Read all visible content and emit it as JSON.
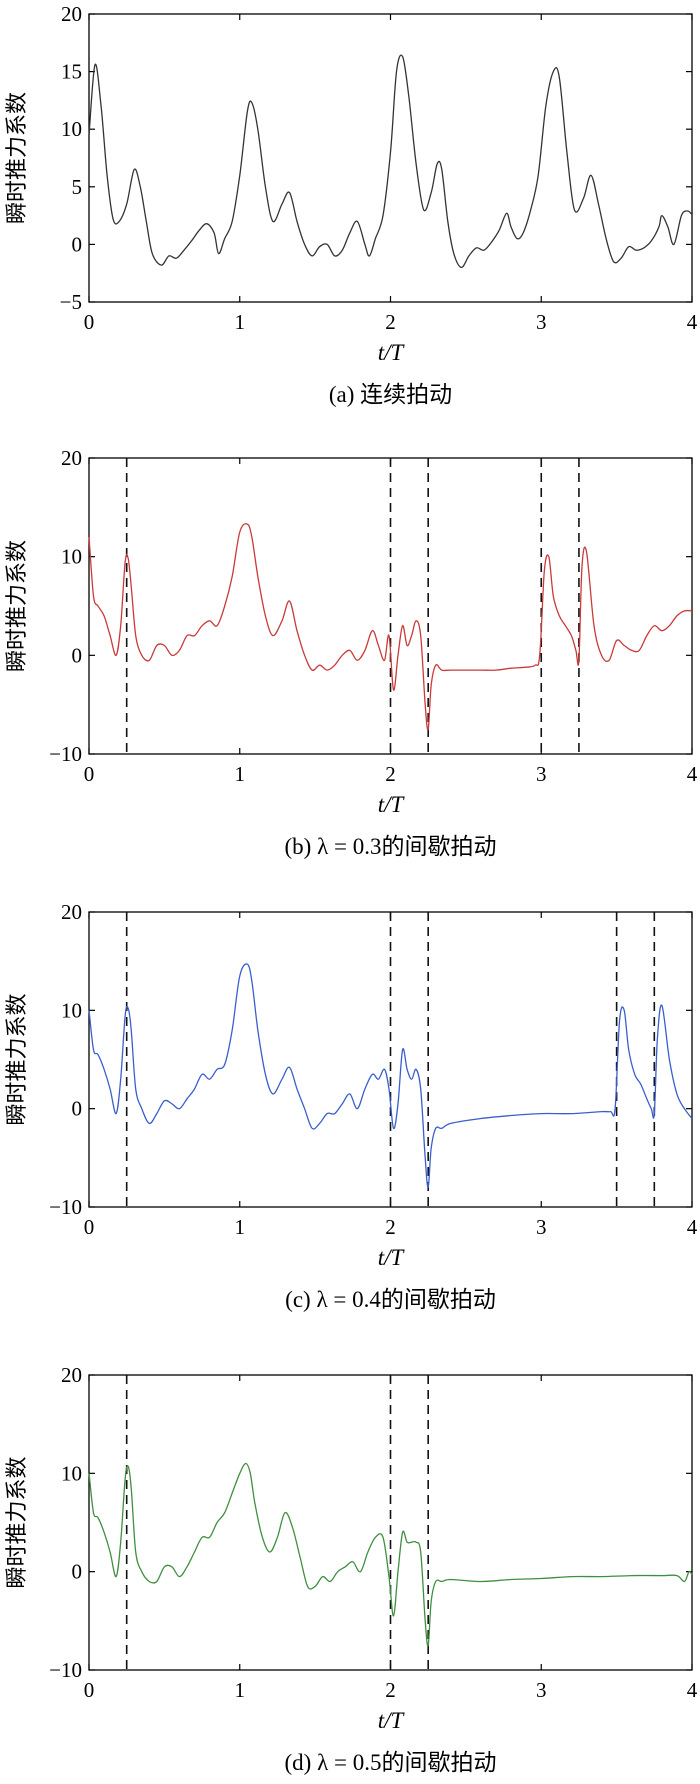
{
  "chart_data": [
    {
      "type": "line",
      "caption": "(a) 连续拍动",
      "xlabel": "t/T",
      "ylabel": "瞬时推力系数",
      "xlim": [
        0,
        4
      ],
      "ylim": [
        -5,
        20
      ],
      "xticks": [
        0,
        1,
        2,
        3,
        4
      ],
      "yticks": [
        -5,
        0,
        5,
        10,
        15,
        20
      ],
      "grid": false,
      "color": "#333333",
      "dashed_lines": [],
      "series": [
        {
          "x": [
            0.0,
            0.04,
            0.08,
            0.12,
            0.16,
            0.2,
            0.25,
            0.3,
            0.34,
            0.38,
            0.42,
            0.48,
            0.53,
            0.58,
            0.63,
            0.68,
            0.73,
            0.78,
            0.83,
            0.86,
            0.9,
            0.95,
            1.0,
            1.05,
            1.08,
            1.12,
            1.17,
            1.22,
            1.28,
            1.33,
            1.38,
            1.43,
            1.48,
            1.53,
            1.58,
            1.63,
            1.68,
            1.73,
            1.78,
            1.83,
            1.86,
            1.9,
            1.95,
            2.0,
            2.04,
            2.08,
            2.12,
            2.17,
            2.22,
            2.27,
            2.31,
            2.34,
            2.38,
            2.42,
            2.47,
            2.52,
            2.57,
            2.62,
            2.67,
            2.72,
            2.77,
            2.8,
            2.84,
            2.88,
            2.93,
            2.98,
            3.03,
            3.08,
            3.12,
            3.17,
            3.22,
            3.28,
            3.33,
            3.38,
            3.43,
            3.48,
            3.53,
            3.58,
            3.63,
            3.68,
            3.73,
            3.78,
            3.8,
            3.84,
            3.88,
            3.93,
            3.97,
            4.0
          ],
          "y": [
            9.5,
            15.6,
            12.0,
            6.0,
            2.2,
            2.0,
            3.5,
            6.5,
            5.0,
            2.0,
            -0.8,
            -1.8,
            -1.0,
            -1.2,
            -0.5,
            0.3,
            1.2,
            1.8,
            1.0,
            -0.8,
            0.5,
            2.0,
            6.0,
            11.5,
            12.3,
            10.0,
            5.0,
            2.0,
            3.5,
            4.5,
            2.0,
            0.0,
            -1.0,
            -0.2,
            0.0,
            -1.0,
            -0.5,
            1.0,
            2.0,
            0.0,
            -1.0,
            0.5,
            2.5,
            8.0,
            15.0,
            16.3,
            13.0,
            7.0,
            3.0,
            4.5,
            7.0,
            6.5,
            2.0,
            -0.8,
            -2.0,
            -1.0,
            -0.3,
            -0.5,
            0.2,
            1.2,
            2.7,
            1.5,
            0.5,
            1.0,
            3.0,
            6.0,
            12.0,
            15.0,
            14.5,
            8.0,
            3.0,
            4.0,
            6.0,
            3.5,
            0.5,
            -1.5,
            -1.2,
            -0.2,
            -0.5,
            -0.3,
            0.3,
            1.5,
            2.5,
            1.5,
            0.0,
            2.5,
            2.9,
            2.6
          ]
        }
      ]
    },
    {
      "type": "line",
      "caption": "(b) λ = 0.3的间歇拍动",
      "xlabel": "t/T",
      "ylabel": "瞬时推力系数",
      "xlim": [
        0,
        4
      ],
      "ylim": [
        -10,
        20
      ],
      "xticks": [
        0,
        1,
        2,
        3,
        4
      ],
      "yticks": [
        -10,
        0,
        10,
        20
      ],
      "grid": false,
      "color": "#c93a3a",
      "dashed_lines": [
        0.25,
        2.0,
        2.25,
        3.0,
        3.25
      ],
      "series": [
        {
          "x": [
            0.0,
            0.03,
            0.06,
            0.1,
            0.14,
            0.18,
            0.21,
            0.24,
            0.26,
            0.28,
            0.31,
            0.35,
            0.4,
            0.45,
            0.5,
            0.55,
            0.6,
            0.65,
            0.7,
            0.75,
            0.8,
            0.85,
            0.9,
            0.95,
            1.0,
            1.05,
            1.08,
            1.12,
            1.17,
            1.22,
            1.28,
            1.33,
            1.38,
            1.43,
            1.48,
            1.53,
            1.58,
            1.63,
            1.68,
            1.73,
            1.78,
            1.83,
            1.88,
            1.92,
            1.96,
            1.99,
            2.02,
            2.05,
            2.08,
            2.11,
            2.14,
            2.17,
            2.2,
            2.23,
            2.25,
            2.27,
            2.3,
            2.34,
            2.4,
            2.5,
            2.6,
            2.7,
            2.8,
            2.9,
            2.96,
            2.99,
            3.02,
            3.05,
            3.08,
            3.12,
            3.16,
            3.2,
            3.23,
            3.25,
            3.27,
            3.3,
            3.35,
            3.4,
            3.45,
            3.5,
            3.55,
            3.6,
            3.65,
            3.7,
            3.75,
            3.8,
            3.85,
            3.9,
            3.95,
            4.0
          ],
          "y": [
            12.0,
            6.0,
            5.0,
            4.0,
            2.0,
            0.0,
            3.0,
            9.5,
            9.8,
            7.0,
            2.0,
            0.0,
            -0.5,
            1.0,
            1.0,
            0.0,
            0.5,
            2.0,
            2.0,
            3.0,
            3.5,
            3.0,
            5.0,
            8.0,
            12.5,
            13.3,
            12.0,
            8.0,
            4.0,
            2.0,
            3.5,
            5.5,
            2.5,
            0.0,
            -1.5,
            -1.0,
            -1.5,
            -1.0,
            0.0,
            0.5,
            -0.5,
            0.5,
            2.5,
            1.0,
            -0.5,
            2.0,
            -3.5,
            0.0,
            3.0,
            1.0,
            2.0,
            3.5,
            2.0,
            -5.0,
            -7.5,
            -3.0,
            -1.0,
            -1.5,
            -1.5,
            -1.5,
            -1.5,
            -1.5,
            -1.3,
            -1.2,
            -1.0,
            0.0,
            8.5,
            10.0,
            6.0,
            4.0,
            3.0,
            2.0,
            0.5,
            -0.5,
            9.0,
            10.5,
            3.0,
            0.0,
            -0.5,
            1.5,
            1.0,
            0.5,
            0.5,
            2.0,
            3.0,
            2.5,
            3.0,
            4.0,
            4.5,
            4.5
          ]
        }
      ]
    },
    {
      "type": "line",
      "caption": "(c) λ = 0.4的间歇拍动",
      "xlabel": "t/T",
      "ylabel": "瞬时推力系数",
      "xlim": [
        0,
        4
      ],
      "ylim": [
        -10,
        20
      ],
      "xticks": [
        0,
        1,
        2,
        3,
        4
      ],
      "yticks": [
        -10,
        0,
        10,
        20
      ],
      "grid": false,
      "color": "#3a5fcd",
      "dashed_lines": [
        0.25,
        2.0,
        2.25,
        3.5,
        3.75
      ],
      "series": [
        {
          "x": [
            0.0,
            0.03,
            0.06,
            0.1,
            0.14,
            0.18,
            0.21,
            0.24,
            0.26,
            0.28,
            0.31,
            0.35,
            0.4,
            0.45,
            0.5,
            0.55,
            0.6,
            0.65,
            0.7,
            0.75,
            0.8,
            0.85,
            0.9,
            0.95,
            1.0,
            1.05,
            1.08,
            1.12,
            1.17,
            1.22,
            1.28,
            1.33,
            1.38,
            1.43,
            1.48,
            1.53,
            1.58,
            1.63,
            1.68,
            1.73,
            1.78,
            1.83,
            1.88,
            1.92,
            1.96,
            1.99,
            2.02,
            2.05,
            2.08,
            2.11,
            2.14,
            2.17,
            2.2,
            2.23,
            2.25,
            2.27,
            2.3,
            2.34,
            2.4,
            2.6,
            2.8,
            3.0,
            3.2,
            3.4,
            3.46,
            3.49,
            3.52,
            3.55,
            3.58,
            3.62,
            3.66,
            3.7,
            3.73,
            3.75,
            3.77,
            3.8,
            3.85,
            3.9,
            3.95,
            4.0
          ],
          "y": [
            10.0,
            6.0,
            5.5,
            4.0,
            2.0,
            -0.5,
            3.0,
            9.5,
            10.2,
            8.0,
            2.0,
            0.0,
            -1.5,
            -0.5,
            0.8,
            0.5,
            0.0,
            1.0,
            2.0,
            3.5,
            3.0,
            4.0,
            4.5,
            8.0,
            13.5,
            14.7,
            13.0,
            8.0,
            3.5,
            1.5,
            3.0,
            4.2,
            2.0,
            0.0,
            -2.0,
            -1.5,
            -0.5,
            -0.5,
            0.5,
            1.5,
            0.0,
            2.0,
            3.5,
            3.0,
            4.0,
            2.0,
            -2.0,
            0.5,
            6.0,
            4.0,
            3.0,
            4.0,
            2.0,
            -5.0,
            -8.0,
            -4.0,
            -2.0,
            -2.0,
            -1.5,
            -1.0,
            -0.7,
            -0.5,
            -0.5,
            -0.3,
            -0.3,
            0.0,
            9.0,
            10.0,
            6.0,
            3.5,
            2.5,
            1.0,
            0.0,
            -0.5,
            7.0,
            10.5,
            5.0,
            1.5,
            0.0,
            -1.0
          ]
        }
      ]
    },
    {
      "type": "line",
      "caption": "(d) λ = 0.5的间歇拍动",
      "xlabel": "t/T",
      "ylabel": "瞬时推力系数",
      "xlim": [
        0,
        4
      ],
      "ylim": [
        -10,
        20
      ],
      "xticks": [
        0,
        1,
        2,
        3,
        4
      ],
      "yticks": [
        -10,
        0,
        10,
        20
      ],
      "grid": false,
      "color": "#3f8f3f",
      "dashed_lines": [
        0.25,
        2.0,
        2.25
      ],
      "series": [
        {
          "x": [
            0.0,
            0.03,
            0.06,
            0.1,
            0.14,
            0.18,
            0.21,
            0.24,
            0.26,
            0.28,
            0.31,
            0.35,
            0.4,
            0.45,
            0.5,
            0.55,
            0.6,
            0.65,
            0.7,
            0.75,
            0.8,
            0.85,
            0.9,
            0.95,
            1.0,
            1.04,
            1.07,
            1.1,
            1.15,
            1.2,
            1.25,
            1.3,
            1.35,
            1.4,
            1.45,
            1.5,
            1.55,
            1.6,
            1.65,
            1.7,
            1.75,
            1.8,
            1.85,
            1.9,
            1.95,
            1.99,
            2.02,
            2.05,
            2.08,
            2.11,
            2.14,
            2.17,
            2.2,
            2.23,
            2.25,
            2.27,
            2.3,
            2.34,
            2.4,
            2.6,
            2.8,
            3.0,
            3.2,
            3.4,
            3.6,
            3.8,
            3.9,
            3.95,
            3.98,
            4.0
          ],
          "y": [
            10.0,
            6.0,
            5.5,
            4.0,
            2.0,
            -0.5,
            3.0,
            9.5,
            10.7,
            8.5,
            2.0,
            0.0,
            -1.0,
            -1.0,
            0.5,
            0.5,
            -0.5,
            0.5,
            2.0,
            3.5,
            3.5,
            5.0,
            6.0,
            8.0,
            10.0,
            11.0,
            10.0,
            7.0,
            3.5,
            2.0,
            3.5,
            6.0,
            4.5,
            1.5,
            -1.5,
            -1.5,
            -0.5,
            -1.0,
            0.0,
            0.5,
            1.0,
            0.0,
            2.0,
            3.5,
            3.5,
            -0.5,
            -4.5,
            0.0,
            4.0,
            3.0,
            3.0,
            3.0,
            2.0,
            -5.0,
            -7.5,
            -3.0,
            -1.0,
            -1.0,
            -0.8,
            -1.0,
            -0.8,
            -0.7,
            -0.5,
            -0.5,
            -0.4,
            -0.4,
            -0.4,
            -1.0,
            0.0,
            -0.3
          ]
        }
      ]
    }
  ]
}
